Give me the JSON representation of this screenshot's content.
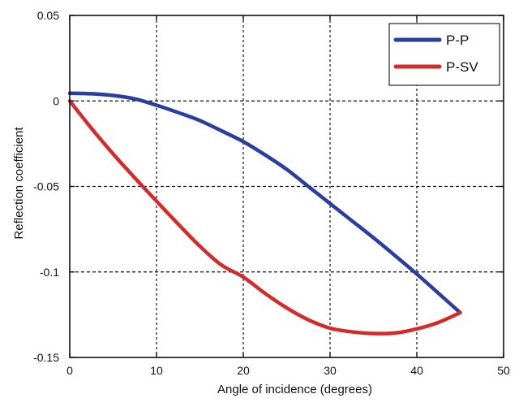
{
  "chart_data": {
    "type": "line",
    "title": "",
    "xlabel": "Angle of incidence (degrees)",
    "ylabel": "Reflection coefficient",
    "xlim": [
      0,
      50
    ],
    "ylim": [
      -0.15,
      0.05
    ],
    "xticks": [
      0,
      10,
      20,
      30,
      40,
      50
    ],
    "yticks": [
      0.05,
      0,
      -0.05,
      -0.1,
      -0.15
    ],
    "xtick_labels": [
      "0",
      "10",
      "20",
      "30",
      "40",
      "50"
    ],
    "ytick_labels": [
      "0.05",
      "0",
      "-0.05",
      "-0.1",
      "-0.15"
    ],
    "grid": true,
    "grid_style": "dashed",
    "legend_position": "top-right",
    "series": [
      {
        "name": "P-P",
        "color": "#2b3d9e",
        "x": [
          0,
          2.5,
          5,
          7.5,
          10,
          12.5,
          15,
          17.5,
          20,
          22.5,
          25,
          27.5,
          30,
          32.5,
          35,
          37.5,
          40,
          42.5,
          45
        ],
        "y": [
          0.0045,
          0.0042,
          0.0032,
          0.0012,
          -0.0025,
          -0.0068,
          -0.0115,
          -0.0175,
          -0.0238,
          -0.0315,
          -0.04,
          -0.05,
          -0.06,
          -0.07,
          -0.08,
          -0.0905,
          -0.1012,
          -0.1125,
          -0.1238
        ]
      },
      {
        "name": "P-SV",
        "color": "#d32a2a",
        "x": [
          0,
          2.5,
          5,
          7.5,
          10,
          12.5,
          15,
          17.5,
          20,
          22.5,
          25,
          27.5,
          30,
          32.5,
          35,
          37.5,
          40,
          42.5,
          45
        ],
        "y": [
          0.0,
          -0.016,
          -0.031,
          -0.045,
          -0.0586,
          -0.072,
          -0.085,
          -0.096,
          -0.103,
          -0.1125,
          -0.121,
          -0.128,
          -0.1329,
          -0.135,
          -0.136,
          -0.1357,
          -0.1333,
          -0.1295,
          -0.1238
        ]
      }
    ]
  }
}
